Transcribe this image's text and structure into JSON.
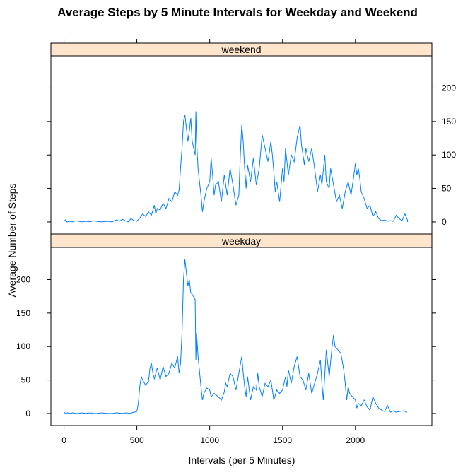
{
  "chart_data": {
    "type": "line",
    "title": "Average Steps by 5 Minute Intervals for Weekday and Weekend",
    "xlabel": "Intervals (per 5 Minutes)",
    "ylabel": "Average Number of Steps",
    "xlim": [
      -90,
      2525
    ],
    "ylim": [
      -18,
      248
    ],
    "x_ticks": [
      0,
      500,
      1000,
      1500,
      2000
    ],
    "x_tick_labels": [
      "0",
      "500",
      "1000",
      "1500",
      "2000"
    ],
    "y_ticks": [
      0,
      50,
      100,
      150,
      200
    ],
    "y_tick_labels": [
      "0",
      "50",
      "100",
      "150",
      "200"
    ],
    "panels": [
      {
        "strip": "weekend",
        "points": [
          [
            0,
            1
          ],
          [
            10,
            3
          ],
          [
            20,
            0
          ],
          [
            40,
            1
          ],
          [
            60,
            0
          ],
          [
            80,
            2
          ],
          [
            100,
            1
          ],
          [
            120,
            0
          ],
          [
            150,
            1
          ],
          [
            180,
            0
          ],
          [
            200,
            2
          ],
          [
            220,
            1
          ],
          [
            260,
            0
          ],
          [
            300,
            1
          ],
          [
            330,
            0
          ],
          [
            360,
            3
          ],
          [
            380,
            1
          ],
          [
            400,
            4
          ],
          [
            420,
            2
          ],
          [
            440,
            0
          ],
          [
            460,
            5
          ],
          [
            480,
            2
          ],
          [
            500,
            1
          ],
          [
            520,
            6
          ],
          [
            540,
            12
          ],
          [
            560,
            8
          ],
          [
            580,
            15
          ],
          [
            600,
            10
          ],
          [
            620,
            25
          ],
          [
            630,
            12
          ],
          [
            640,
            20
          ],
          [
            660,
            18
          ],
          [
            680,
            28
          ],
          [
            700,
            20
          ],
          [
            720,
            35
          ],
          [
            740,
            30
          ],
          [
            760,
            45
          ],
          [
            780,
            40
          ],
          [
            790,
            48
          ],
          [
            800,
            80
          ],
          [
            810,
            110
          ],
          [
            820,
            150
          ],
          [
            830,
            160
          ],
          [
            840,
            140
          ],
          [
            850,
            120
          ],
          [
            860,
            135
          ],
          [
            870,
            155
          ],
          [
            880,
            120
          ],
          [
            890,
            110
          ],
          [
            900,
            100
          ],
          [
            905,
            165
          ],
          [
            910,
            120
          ],
          [
            920,
            80
          ],
          [
            930,
            60
          ],
          [
            940,
            40
          ],
          [
            950,
            15
          ],
          [
            960,
            30
          ],
          [
            980,
            50
          ],
          [
            1000,
            60
          ],
          [
            1010,
            95
          ],
          [
            1020,
            70
          ],
          [
            1030,
            40
          ],
          [
            1040,
            55
          ],
          [
            1060,
            60
          ],
          [
            1080,
            30
          ],
          [
            1100,
            70
          ],
          [
            1120,
            40
          ],
          [
            1140,
            80
          ],
          [
            1160,
            55
          ],
          [
            1180,
            25
          ],
          [
            1200,
            40
          ],
          [
            1210,
            100
          ],
          [
            1220,
            145
          ],
          [
            1230,
            120
          ],
          [
            1240,
            80
          ],
          [
            1250,
            50
          ],
          [
            1260,
            85
          ],
          [
            1280,
            60
          ],
          [
            1300,
            95
          ],
          [
            1320,
            55
          ],
          [
            1340,
            80
          ],
          [
            1360,
            130
          ],
          [
            1380,
            110
          ],
          [
            1400,
            90
          ],
          [
            1420,
            120
          ],
          [
            1430,
            100
          ],
          [
            1440,
            75
          ],
          [
            1450,
            45
          ],
          [
            1460,
            60
          ],
          [
            1480,
            30
          ],
          [
            1500,
            80
          ],
          [
            1510,
            60
          ],
          [
            1520,
            110
          ],
          [
            1540,
            70
          ],
          [
            1560,
            100
          ],
          [
            1580,
            90
          ],
          [
            1600,
            125
          ],
          [
            1620,
            145
          ],
          [
            1630,
            115
          ],
          [
            1640,
            100
          ],
          [
            1650,
            85
          ],
          [
            1660,
            110
          ],
          [
            1680,
            90
          ],
          [
            1700,
            110
          ],
          [
            1720,
            80
          ],
          [
            1740,
            45
          ],
          [
            1760,
            70
          ],
          [
            1770,
            55
          ],
          [
            1790,
            100
          ],
          [
            1800,
            60
          ],
          [
            1820,
            50
          ],
          [
            1830,
            80
          ],
          [
            1850,
            55
          ],
          [
            1870,
            30
          ],
          [
            1890,
            40
          ],
          [
            1910,
            20
          ],
          [
            1930,
            45
          ],
          [
            1950,
            60
          ],
          [
            1970,
            40
          ],
          [
            1990,
            70
          ],
          [
            2000,
            88
          ],
          [
            2010,
            70
          ],
          [
            2020,
            80
          ],
          [
            2030,
            65
          ],
          [
            2040,
            45
          ],
          [
            2060,
            35
          ],
          [
            2080,
            20
          ],
          [
            2100,
            25
          ],
          [
            2120,
            8
          ],
          [
            2140,
            15
          ],
          [
            2160,
            5
          ],
          [
            2180,
            2
          ],
          [
            2200,
            3
          ],
          [
            2220,
            1
          ],
          [
            2240,
            2
          ],
          [
            2260,
            1
          ],
          [
            2280,
            10
          ],
          [
            2300,
            5
          ],
          [
            2320,
            2
          ],
          [
            2340,
            12
          ],
          [
            2360,
            1
          ],
          [
            2355,
            0
          ]
        ]
      },
      {
        "strip": "weekday",
        "points": [
          [
            0,
            2
          ],
          [
            10,
            0
          ],
          [
            20,
            1
          ],
          [
            40,
            0
          ],
          [
            60,
            1
          ],
          [
            80,
            0
          ],
          [
            100,
            0
          ],
          [
            120,
            1
          ],
          [
            150,
            0
          ],
          [
            180,
            1
          ],
          [
            200,
            0
          ],
          [
            230,
            0
          ],
          [
            260,
            1
          ],
          [
            300,
            0
          ],
          [
            330,
            0
          ],
          [
            360,
            1
          ],
          [
            400,
            0
          ],
          [
            430,
            1
          ],
          [
            450,
            0
          ],
          [
            480,
            2
          ],
          [
            500,
            3
          ],
          [
            510,
            15
          ],
          [
            520,
            40
          ],
          [
            530,
            55
          ],
          [
            540,
            50
          ],
          [
            560,
            42
          ],
          [
            580,
            48
          ],
          [
            590,
            68
          ],
          [
            600,
            75
          ],
          [
            610,
            60
          ],
          [
            620,
            52
          ],
          [
            640,
            68
          ],
          [
            660,
            50
          ],
          [
            680,
            70
          ],
          [
            700,
            55
          ],
          [
            720,
            60
          ],
          [
            740,
            75
          ],
          [
            760,
            68
          ],
          [
            780,
            85
          ],
          [
            790,
            60
          ],
          [
            800,
            75
          ],
          [
            810,
            120
          ],
          [
            820,
            200
          ],
          [
            830,
            230
          ],
          [
            840,
            210
          ],
          [
            850,
            190
          ],
          [
            860,
            200
          ],
          [
            870,
            180
          ],
          [
            880,
            178
          ],
          [
            900,
            170
          ],
          [
            905,
            80
          ],
          [
            910,
            120
          ],
          [
            920,
            85
          ],
          [
            940,
            40
          ],
          [
            950,
            20
          ],
          [
            960,
            30
          ],
          [
            980,
            38
          ],
          [
            1000,
            35
          ],
          [
            1010,
            25
          ],
          [
            1030,
            30
          ],
          [
            1060,
            25
          ],
          [
            1080,
            20
          ],
          [
            1100,
            32
          ],
          [
            1110,
            45
          ],
          [
            1120,
            40
          ],
          [
            1140,
            60
          ],
          [
            1160,
            55
          ],
          [
            1180,
            35
          ],
          [
            1200,
            60
          ],
          [
            1220,
            85
          ],
          [
            1230,
            60
          ],
          [
            1240,
            40
          ],
          [
            1250,
            25
          ],
          [
            1260,
            55
          ],
          [
            1280,
            20
          ],
          [
            1300,
            40
          ],
          [
            1320,
            35
          ],
          [
            1330,
            60
          ],
          [
            1340,
            40
          ],
          [
            1360,
            25
          ],
          [
            1380,
            45
          ],
          [
            1400,
            40
          ],
          [
            1420,
            50
          ],
          [
            1440,
            20
          ],
          [
            1460,
            35
          ],
          [
            1480,
            30
          ],
          [
            1500,
            35
          ],
          [
            1520,
            55
          ],
          [
            1530,
            40
          ],
          [
            1540,
            65
          ],
          [
            1560,
            45
          ],
          [
            1580,
            70
          ],
          [
            1600,
            85
          ],
          [
            1620,
            55
          ],
          [
            1640,
            50
          ],
          [
            1660,
            35
          ],
          [
            1680,
            60
          ],
          [
            1700,
            30
          ],
          [
            1720,
            45
          ],
          [
            1740,
            60
          ],
          [
            1760,
            80
          ],
          [
            1770,
            45
          ],
          [
            1780,
            20
          ],
          [
            1800,
            95
          ],
          [
            1820,
            55
          ],
          [
            1840,
            100
          ],
          [
            1850,
            117
          ],
          [
            1860,
            100
          ],
          [
            1880,
            95
          ],
          [
            1900,
            90
          ],
          [
            1920,
            65
          ],
          [
            1930,
            45
          ],
          [
            1940,
            20
          ],
          [
            1950,
            40
          ],
          [
            1960,
            30
          ],
          [
            1980,
            25
          ],
          [
            2000,
            20
          ],
          [
            2010,
            8
          ],
          [
            2020,
            15
          ],
          [
            2040,
            12
          ],
          [
            2060,
            20
          ],
          [
            2080,
            10
          ],
          [
            2100,
            5
          ],
          [
            2120,
            25
          ],
          [
            2140,
            15
          ],
          [
            2160,
            8
          ],
          [
            2180,
            5
          ],
          [
            2200,
            3
          ],
          [
            2220,
            12
          ],
          [
            2240,
            2
          ],
          [
            2260,
            4
          ],
          [
            2280,
            2
          ],
          [
            2300,
            3
          ],
          [
            2330,
            4
          ],
          [
            2355,
            2
          ]
        ]
      }
    ]
  }
}
